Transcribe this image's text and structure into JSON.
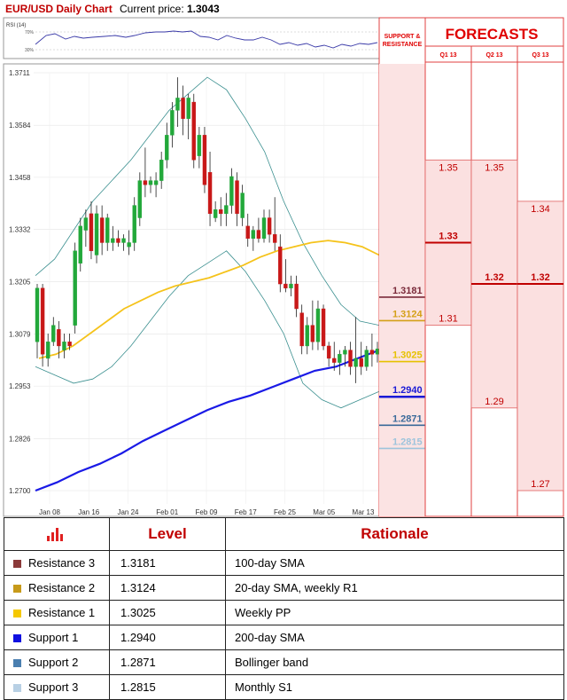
{
  "header": {
    "title": "EUR/USD Daily Chart",
    "price_label": "Current price:",
    "price_value": "1.3043"
  },
  "rsi": {
    "label": "RSI (14)",
    "ticks": [
      "70%",
      "30%"
    ]
  },
  "chart_data": [
    {
      "type": "candlestick",
      "title": "EUR/USD Daily Chart",
      "ylim": [
        1.27,
        1.3711
      ],
      "y_ticks": [
        "1.3711",
        "1.3584",
        "1.3458",
        "1.3332",
        "1.3205",
        "1.3079",
        "1.2953",
        "1.2826",
        "1.2700"
      ],
      "x_ticks": [
        "Jan 08",
        "Jan 16",
        "Jan 24",
        "Feb 01",
        "Feb 09",
        "Feb 17",
        "Feb 25",
        "Mar 05",
        "Mar 13"
      ],
      "candles": [
        {
          "o": 1.306,
          "h": 1.32,
          "l": 1.302,
          "c": 1.319
        },
        {
          "o": 1.319,
          "h": 1.32,
          "l": 1.3,
          "c": 1.303
        },
        {
          "o": 1.302,
          "h": 1.308,
          "l": 1.3,
          "c": 1.306
        },
        {
          "o": 1.306,
          "h": 1.312,
          "l": 1.305,
          "c": 1.31
        },
        {
          "o": 1.309,
          "h": 1.311,
          "l": 1.302,
          "c": 1.305
        },
        {
          "o": 1.304,
          "h": 1.308,
          "l": 1.302,
          "c": 1.306
        },
        {
          "o": 1.306,
          "h": 1.308,
          "l": 1.304,
          "c": 1.305
        },
        {
          "o": 1.31,
          "h": 1.33,
          "l": 1.308,
          "c": 1.328
        },
        {
          "o": 1.325,
          "h": 1.336,
          "l": 1.323,
          "c": 1.334
        },
        {
          "o": 1.333,
          "h": 1.338,
          "l": 1.329,
          "c": 1.336
        },
        {
          "o": 1.337,
          "h": 1.34,
          "l": 1.326,
          "c": 1.328
        },
        {
          "o": 1.327,
          "h": 1.339,
          "l": 1.325,
          "c": 1.337
        },
        {
          "o": 1.336,
          "h": 1.339,
          "l": 1.327,
          "c": 1.33
        },
        {
          "o": 1.33,
          "h": 1.337,
          "l": 1.328,
          "c": 1.336
        },
        {
          "o": 1.33,
          "h": 1.334,
          "l": 1.328,
          "c": 1.331
        },
        {
          "o": 1.331,
          "h": 1.333,
          "l": 1.329,
          "c": 1.33
        },
        {
          "o": 1.33,
          "h": 1.332,
          "l": 1.328,
          "c": 1.331
        },
        {
          "o": 1.329,
          "h": 1.333,
          "l": 1.327,
          "c": 1.33
        },
        {
          "o": 1.33,
          "h": 1.341,
          "l": 1.328,
          "c": 1.339
        },
        {
          "o": 1.336,
          "h": 1.347,
          "l": 1.334,
          "c": 1.345
        },
        {
          "o": 1.345,
          "h": 1.353,
          "l": 1.341,
          "c": 1.344
        },
        {
          "o": 1.344,
          "h": 1.346,
          "l": 1.342,
          "c": 1.345
        },
        {
          "o": 1.344,
          "h": 1.347,
          "l": 1.341,
          "c": 1.345
        },
        {
          "o": 1.345,
          "h": 1.352,
          "l": 1.343,
          "c": 1.35
        },
        {
          "o": 1.35,
          "h": 1.359,
          "l": 1.348,
          "c": 1.356
        },
        {
          "o": 1.356,
          "h": 1.364,
          "l": 1.353,
          "c": 1.362
        },
        {
          "o": 1.362,
          "h": 1.37,
          "l": 1.358,
          "c": 1.365
        },
        {
          "o": 1.365,
          "h": 1.368,
          "l": 1.356,
          "c": 1.36
        },
        {
          "o": 1.36,
          "h": 1.366,
          "l": 1.355,
          "c": 1.365
        },
        {
          "o": 1.364,
          "h": 1.366,
          "l": 1.348,
          "c": 1.35
        },
        {
          "o": 1.351,
          "h": 1.358,
          "l": 1.348,
          "c": 1.356
        },
        {
          "o": 1.356,
          "h": 1.358,
          "l": 1.342,
          "c": 1.344
        },
        {
          "o": 1.347,
          "h": 1.352,
          "l": 1.334,
          "c": 1.337
        },
        {
          "o": 1.336,
          "h": 1.34,
          "l": 1.335,
          "c": 1.338
        },
        {
          "o": 1.338,
          "h": 1.341,
          "l": 1.334,
          "c": 1.337
        },
        {
          "o": 1.337,
          "h": 1.342,
          "l": 1.334,
          "c": 1.339
        },
        {
          "o": 1.339,
          "h": 1.348,
          "l": 1.337,
          "c": 1.346
        },
        {
          "o": 1.345,
          "h": 1.347,
          "l": 1.334,
          "c": 1.337
        },
        {
          "o": 1.336,
          "h": 1.344,
          "l": 1.334,
          "c": 1.342
        },
        {
          "o": 1.334,
          "h": 1.337,
          "l": 1.329,
          "c": 1.331
        },
        {
          "o": 1.331,
          "h": 1.334,
          "l": 1.328,
          "c": 1.333
        },
        {
          "o": 1.333,
          "h": 1.336,
          "l": 1.33,
          "c": 1.331
        },
        {
          "o": 1.331,
          "h": 1.338,
          "l": 1.33,
          "c": 1.336
        },
        {
          "o": 1.336,
          "h": 1.338,
          "l": 1.33,
          "c": 1.332
        },
        {
          "o": 1.332,
          "h": 1.341,
          "l": 1.328,
          "c": 1.33
        },
        {
          "o": 1.329,
          "h": 1.332,
          "l": 1.318,
          "c": 1.32
        },
        {
          "o": 1.32,
          "h": 1.326,
          "l": 1.318,
          "c": 1.319
        },
        {
          "o": 1.319,
          "h": 1.322,
          "l": 1.317,
          "c": 1.32
        },
        {
          "o": 1.32,
          "h": 1.322,
          "l": 1.312,
          "c": 1.314
        },
        {
          "o": 1.313,
          "h": 1.315,
          "l": 1.303,
          "c": 1.305
        },
        {
          "o": 1.305,
          "h": 1.312,
          "l": 1.303,
          "c": 1.31
        },
        {
          "o": 1.31,
          "h": 1.316,
          "l": 1.304,
          "c": 1.306
        },
        {
          "o": 1.306,
          "h": 1.316,
          "l": 1.304,
          "c": 1.314
        },
        {
          "o": 1.314,
          "h": 1.315,
          "l": 1.304,
          "c": 1.305
        },
        {
          "o": 1.305,
          "h": 1.306,
          "l": 1.3,
          "c": 1.302
        },
        {
          "o": 1.302,
          "h": 1.306,
          "l": 1.299,
          "c": 1.301
        },
        {
          "o": 1.301,
          "h": 1.304,
          "l": 1.298,
          "c": 1.303
        },
        {
          "o": 1.303,
          "h": 1.305,
          "l": 1.3,
          "c": 1.304
        },
        {
          "o": 1.304,
          "h": 1.306,
          "l": 1.298,
          "c": 1.3
        },
        {
          "o": 1.3,
          "h": 1.312,
          "l": 1.296,
          "c": 1.302
        },
        {
          "o": 1.302,
          "h": 1.306,
          "l": 1.298,
          "c": 1.3
        },
        {
          "o": 1.3,
          "h": 1.305,
          "l": 1.299,
          "c": 1.304
        },
        {
          "o": 1.304,
          "h": 1.308,
          "l": 1.3,
          "c": 1.303
        },
        {
          "o": 1.303,
          "h": 1.306,
          "l": 1.301,
          "c": 1.3043
        }
      ],
      "series": [
        {
          "name": "20-day SMA",
          "color": "#f5c31b",
          "values": [
            1.302,
            1.303,
            1.305,
            1.308,
            1.311,
            1.314,
            1.316,
            1.318,
            1.3195,
            1.3205,
            1.3215,
            1.323,
            1.3245,
            1.3265,
            1.328,
            1.329,
            1.33,
            1.3305,
            1.33,
            1.329,
            1.327
          ]
        },
        {
          "name": "200-day SMA",
          "color": "#1a1ae6",
          "values": [
            1.27,
            1.272,
            1.2745,
            1.2765,
            1.279,
            1.282,
            1.2845,
            1.287,
            1.2895,
            1.2915,
            1.293,
            1.295,
            1.297,
            1.299,
            1.3,
            1.302,
            1.304
          ]
        },
        {
          "name": "Bollinger upper",
          "color": "#3a8f8f",
          "values": [
            1.322,
            1.326,
            1.333,
            1.34,
            1.345,
            1.35,
            1.356,
            1.362,
            1.366,
            1.37,
            1.367,
            1.36,
            1.352,
            1.34,
            1.33,
            1.322,
            1.315,
            1.311,
            1.31
          ]
        },
        {
          "name": "Bollinger lower",
          "color": "#3a8f8f",
          "values": [
            1.3,
            1.298,
            1.296,
            1.297,
            1.3,
            1.305,
            1.311,
            1.317,
            1.322,
            1.325,
            1.328,
            1.323,
            1.316,
            1.308,
            1.296,
            1.292,
            1.29,
            1.292,
            1.294
          ]
        }
      ],
      "levels": [
        {
          "value": 1.3181,
          "label": "1.3181",
          "color": "#7a2a3a"
        },
        {
          "value": 1.3124,
          "label": "1.3124",
          "color": "#d4a017"
        },
        {
          "value": 1.3025,
          "label": "1.3025",
          "color": "#e6c200"
        },
        {
          "value": 1.294,
          "label": "1.2940",
          "color": "#1a1ad6"
        },
        {
          "value": 1.2871,
          "label": "1.2871",
          "color": "#3a6a9a"
        },
        {
          "value": 1.2815,
          "label": "1.2815",
          "color": "#9ec4dc"
        }
      ]
    },
    {
      "type": "table",
      "title": "FORECASTS",
      "support_resistance_title": "SUPPORT & RESISTANCE",
      "quarters": [
        {
          "name": "Q1 13",
          "high": "1.35",
          "mid": "1.33",
          "low": "1.31"
        },
        {
          "name": "Q2 13",
          "high": "1.35",
          "mid": "1.32",
          "low": "1.29"
        },
        {
          "name": "Q3 13",
          "high": "1.34",
          "mid": "1.32",
          "low": "1.27"
        }
      ]
    }
  ],
  "table": {
    "headers": [
      "Level",
      "Rationale"
    ],
    "header_icon": "bar-chart-icon",
    "rows": [
      {
        "name": "Resistance 3",
        "level": "1.3181",
        "rationale": "100-day SMA",
        "color": "#8b3a3a"
      },
      {
        "name": "Resistance 2",
        "level": "1.3124",
        "rationale": "20-day SMA, weekly R1",
        "color": "#c79a1a"
      },
      {
        "name": "Resistance 1",
        "level": "1.3025",
        "rationale": "Weekly PP",
        "color": "#f5c800"
      },
      {
        "name": "Support 1",
        "level": "1.2940",
        "rationale": "200-day SMA",
        "color": "#1010e0"
      },
      {
        "name": "Support 2",
        "level": "1.2871",
        "rationale": "Bollinger band",
        "color": "#4a7fb0"
      },
      {
        "name": "Support 3",
        "level": "1.2815",
        "rationale": "Monthly S1",
        "color": "#b8d0e4"
      }
    ]
  }
}
